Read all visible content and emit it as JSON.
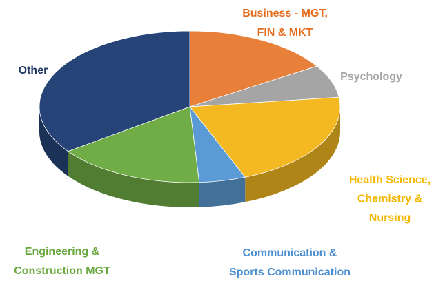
{
  "chart_data": {
    "type": "pie3d",
    "categories": [
      [
        "Business - MGT,",
        "FIN & MKT"
      ],
      [
        "Psychology"
      ],
      [
        "Health Science,",
        "Chemistry &",
        "Nursing"
      ],
      [
        "Communication  &",
        "Sports Communication"
      ],
      [
        "Engineering &",
        "Construction  MGT"
      ],
      [
        "Other"
      ]
    ],
    "values": [
      16,
      7,
      21,
      5,
      16,
      35
    ],
    "colors": [
      "#e9803a",
      "#a5a5a5",
      "#f4b922",
      "#5b9bd5",
      "#70ad47",
      "#264478"
    ],
    "label_colors": [
      "#e46c1e",
      "#a6a6a6",
      "#f5b800",
      "#4b8fd0",
      "#6aa842",
      "#1f3864"
    ]
  }
}
